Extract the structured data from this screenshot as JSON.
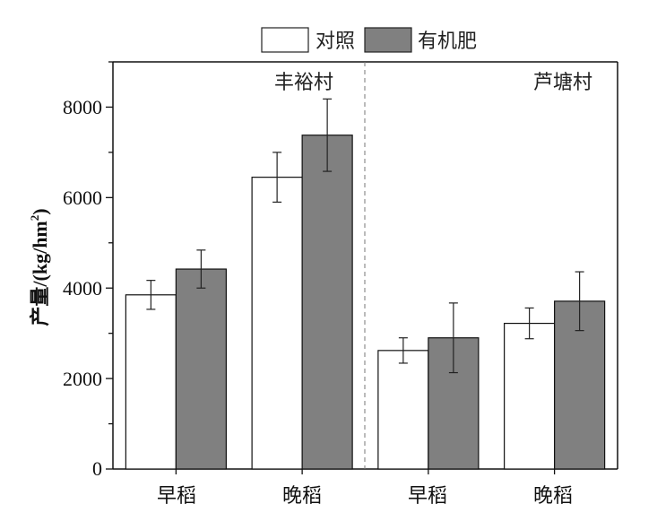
{
  "chart_data": {
    "type": "bar",
    "ylabel": "产量/(kg/hm",
    "ylabel_sup": "2",
    "ylabel_close": ")",
    "ylim": [
      0,
      9000
    ],
    "yticks": [
      0,
      2000,
      4000,
      6000,
      8000
    ],
    "yticks_text": [
      "0",
      "2000",
      "4000",
      "6000",
      "8000"
    ],
    "grid": false,
    "legend_position": "top-center",
    "groups": [
      {
        "name": "丰裕村",
        "categories": [
          "早稻",
          "晚稻"
        ]
      },
      {
        "name": "芦塘村",
        "categories": [
          "早稻",
          "晚稻"
        ]
      }
    ],
    "categories": [
      "早稻",
      "晚稻",
      "早稻",
      "晚稻"
    ],
    "series": [
      {
        "name": "对照",
        "color": "#ffffff",
        "values": [
          3850,
          6450,
          2620,
          3220
        ],
        "errors": [
          320,
          550,
          280,
          340
        ]
      },
      {
        "name": "有机肥",
        "color": "#808080",
        "values": [
          4420,
          7380,
          2900,
          3710
        ],
        "errors": [
          420,
          800,
          770,
          650
        ]
      }
    ]
  }
}
